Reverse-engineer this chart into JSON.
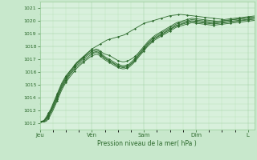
{
  "bg_color": "#c8e8cc",
  "plot_bg_color": "#d8f0dc",
  "grid_color_major": "#99cc99",
  "grid_color_minor": "#aaddaa",
  "line_color": "#2d6a2d",
  "marker_color": "#2d6a2d",
  "xlabel_text": "Pression niveau de la mer( hPa )",
  "ylim": [
    1011.5,
    1021.5
  ],
  "yticks": [
    1012,
    1013,
    1014,
    1015,
    1016,
    1017,
    1018,
    1019,
    1020,
    1021
  ],
  "xtick_labels": [
    "Jeu",
    "Ven",
    "Sam",
    "Dim",
    "L"
  ],
  "xtick_pos": [
    0,
    24,
    48,
    72,
    96
  ],
  "total_hours": 99,
  "n_points": 100,
  "series": [
    [
      1012.1,
      1012.15,
      1012.25,
      1012.5,
      1012.8,
      1013.1,
      1013.5,
      1013.9,
      1014.3,
      1014.7,
      1015.1,
      1015.4,
      1015.7,
      1015.9,
      1016.1,
      1016.3,
      1016.5,
      1016.7,
      1016.85,
      1017.0,
      1017.15,
      1017.3,
      1017.5,
      1017.65,
      1017.8,
      1017.9,
      1018.0,
      1018.1,
      1018.2,
      1018.3,
      1018.4,
      1018.5,
      1018.55,
      1018.6,
      1018.65,
      1018.7,
      1018.75,
      1018.8,
      1018.85,
      1018.9,
      1019.0,
      1019.1,
      1019.2,
      1019.3,
      1019.4,
      1019.5,
      1019.6,
      1019.7,
      1019.8,
      1019.85,
      1019.9,
      1019.95,
      1020.0,
      1020.05,
      1020.1,
      1020.15,
      1020.2,
      1020.25,
      1020.3,
      1020.35,
      1020.4,
      1020.42,
      1020.44,
      1020.46,
      1020.48,
      1020.5,
      1020.48,
      1020.46,
      1020.44,
      1020.42,
      1020.4,
      1020.38,
      1020.36,
      1020.34,
      1020.32,
      1020.3,
      1020.28,
      1020.26,
      1020.24,
      1020.22,
      1020.2,
      1020.18,
      1020.16,
      1020.14,
      1020.12,
      1020.1,
      1020.12,
      1020.14,
      1020.16,
      1020.18,
      1020.2,
      1020.22,
      1020.24,
      1020.26,
      1020.28,
      1020.3,
      1020.32,
      1020.34,
      1020.36,
      1020.38
    ],
    [
      1012.1,
      1012.15,
      1012.2,
      1012.4,
      1012.7,
      1013.0,
      1013.4,
      1013.8,
      1014.2,
      1014.6,
      1015.0,
      1015.3,
      1015.6,
      1015.85,
      1016.1,
      1016.3,
      1016.55,
      1016.75,
      1016.9,
      1017.05,
      1017.2,
      1017.35,
      1017.5,
      1017.6,
      1017.7,
      1017.75,
      1017.8,
      1017.75,
      1017.6,
      1017.5,
      1017.4,
      1017.35,
      1017.3,
      1017.2,
      1017.1,
      1017.0,
      1016.9,
      1016.85,
      1016.8,
      1016.8,
      1016.85,
      1016.9,
      1017.0,
      1017.1,
      1017.25,
      1017.4,
      1017.6,
      1017.8,
      1018.0,
      1018.2,
      1018.4,
      1018.55,
      1018.7,
      1018.85,
      1018.95,
      1019.05,
      1019.15,
      1019.25,
      1019.35,
      1019.45,
      1019.55,
      1019.65,
      1019.75,
      1019.85,
      1019.9,
      1019.95,
      1020.0,
      1020.05,
      1020.1,
      1020.15,
      1020.2,
      1020.18,
      1020.16,
      1020.14,
      1020.12,
      1020.1,
      1020.08,
      1020.06,
      1020.04,
      1020.02,
      1020.0,
      1019.98,
      1019.96,
      1019.98,
      1020.0,
      1020.02,
      1020.04,
      1020.06,
      1020.08,
      1020.1,
      1020.12,
      1020.14,
      1020.16,
      1020.18,
      1020.2,
      1020.22,
      1020.24,
      1020.26,
      1020.28,
      1020.3
    ],
    [
      1012.1,
      1012.12,
      1012.18,
      1012.38,
      1012.65,
      1012.95,
      1013.3,
      1013.7,
      1014.1,
      1014.5,
      1014.9,
      1015.2,
      1015.5,
      1015.75,
      1016.0,
      1016.2,
      1016.45,
      1016.65,
      1016.8,
      1016.95,
      1017.1,
      1017.25,
      1017.4,
      1017.5,
      1017.6,
      1017.65,
      1017.7,
      1017.65,
      1017.5,
      1017.35,
      1017.2,
      1017.1,
      1017.0,
      1016.9,
      1016.8,
      1016.7,
      1016.6,
      1016.55,
      1016.5,
      1016.5,
      1016.55,
      1016.6,
      1016.75,
      1016.9,
      1017.1,
      1017.3,
      1017.5,
      1017.7,
      1017.9,
      1018.1,
      1018.3,
      1018.45,
      1018.6,
      1018.75,
      1018.85,
      1018.95,
      1019.05,
      1019.15,
      1019.25,
      1019.35,
      1019.45,
      1019.55,
      1019.65,
      1019.75,
      1019.8,
      1019.85,
      1019.9,
      1019.95,
      1020.0,
      1020.05,
      1020.1,
      1020.08,
      1020.06,
      1020.04,
      1020.02,
      1020.0,
      1019.98,
      1019.96,
      1019.94,
      1019.92,
      1019.9,
      1019.92,
      1019.94,
      1019.96,
      1019.98,
      1020.0,
      1020.02,
      1020.04,
      1020.06,
      1020.08,
      1020.1,
      1020.12,
      1020.14,
      1020.16,
      1020.18,
      1020.2,
      1020.22,
      1020.24,
      1020.26,
      1020.28
    ],
    [
      1012.1,
      1012.1,
      1012.15,
      1012.32,
      1012.58,
      1012.88,
      1013.22,
      1013.6,
      1014.0,
      1014.4,
      1014.8,
      1015.1,
      1015.4,
      1015.65,
      1015.9,
      1016.1,
      1016.35,
      1016.55,
      1016.7,
      1016.85,
      1017.0,
      1017.15,
      1017.3,
      1017.4,
      1017.5,
      1017.55,
      1017.6,
      1017.55,
      1017.4,
      1017.25,
      1017.1,
      1017.0,
      1016.9,
      1016.8,
      1016.7,
      1016.6,
      1016.5,
      1016.45,
      1016.4,
      1016.4,
      1016.45,
      1016.5,
      1016.65,
      1016.8,
      1017.0,
      1017.2,
      1017.4,
      1017.6,
      1017.8,
      1018.0,
      1018.2,
      1018.35,
      1018.5,
      1018.65,
      1018.75,
      1018.85,
      1018.95,
      1019.05,
      1019.15,
      1019.25,
      1019.35,
      1019.45,
      1019.55,
      1019.65,
      1019.7,
      1019.75,
      1019.8,
      1019.85,
      1019.9,
      1019.95,
      1020.0,
      1019.98,
      1019.96,
      1019.94,
      1019.92,
      1019.9,
      1019.88,
      1019.86,
      1019.84,
      1019.82,
      1019.8,
      1019.82,
      1019.84,
      1019.86,
      1019.88,
      1019.9,
      1019.92,
      1019.94,
      1019.96,
      1019.98,
      1020.0,
      1020.02,
      1020.04,
      1020.06,
      1020.08,
      1020.1,
      1020.12,
      1020.14,
      1020.16,
      1020.18
    ],
    [
      1012.1,
      1012.1,
      1012.1,
      1012.25,
      1012.5,
      1012.8,
      1013.12,
      1013.5,
      1013.9,
      1014.3,
      1014.7,
      1015.0,
      1015.3,
      1015.55,
      1015.8,
      1016.0,
      1016.22,
      1016.42,
      1016.58,
      1016.72,
      1016.86,
      1017.0,
      1017.15,
      1017.28,
      1017.38,
      1017.48,
      1017.52,
      1017.48,
      1017.35,
      1017.2,
      1017.05,
      1016.95,
      1016.85,
      1016.75,
      1016.65,
      1016.55,
      1016.45,
      1016.4,
      1016.35,
      1016.35,
      1016.4,
      1016.45,
      1016.6,
      1016.75,
      1016.95,
      1017.15,
      1017.35,
      1017.55,
      1017.75,
      1017.95,
      1018.15,
      1018.3,
      1018.45,
      1018.6,
      1018.7,
      1018.8,
      1018.9,
      1019.0,
      1019.1,
      1019.2,
      1019.3,
      1019.4,
      1019.5,
      1019.6,
      1019.65,
      1019.7,
      1019.75,
      1019.8,
      1019.85,
      1019.9,
      1019.95,
      1019.93,
      1019.91,
      1019.89,
      1019.87,
      1019.85,
      1019.83,
      1019.81,
      1019.79,
      1019.77,
      1019.75,
      1019.77,
      1019.79,
      1019.81,
      1019.83,
      1019.85,
      1019.87,
      1019.89,
      1019.91,
      1019.93,
      1019.95,
      1019.97,
      1019.99,
      1020.01,
      1020.03,
      1020.05,
      1020.07,
      1020.09,
      1020.11,
      1020.13
    ],
    [
      1012.1,
      1012.1,
      1012.1,
      1012.15,
      1012.35,
      1012.65,
      1012.98,
      1013.35,
      1013.75,
      1014.15,
      1014.55,
      1014.88,
      1015.18,
      1015.42,
      1015.65,
      1015.85,
      1016.08,
      1016.28,
      1016.45,
      1016.6,
      1016.74,
      1016.88,
      1017.02,
      1017.15,
      1017.25,
      1017.32,
      1017.38,
      1017.35,
      1017.22,
      1017.08,
      1016.95,
      1016.85,
      1016.75,
      1016.65,
      1016.55,
      1016.45,
      1016.35,
      1016.3,
      1016.25,
      1016.25,
      1016.3,
      1016.35,
      1016.5,
      1016.65,
      1016.85,
      1017.05,
      1017.25,
      1017.45,
      1017.65,
      1017.85,
      1018.05,
      1018.2,
      1018.35,
      1018.5,
      1018.6,
      1018.7,
      1018.8,
      1018.9,
      1019.0,
      1019.1,
      1019.2,
      1019.3,
      1019.4,
      1019.5,
      1019.55,
      1019.6,
      1019.65,
      1019.7,
      1019.75,
      1019.8,
      1019.85,
      1019.83,
      1019.81,
      1019.79,
      1019.77,
      1019.75,
      1019.73,
      1019.71,
      1019.69,
      1019.67,
      1019.65,
      1019.67,
      1019.69,
      1019.71,
      1019.73,
      1019.75,
      1019.77,
      1019.79,
      1019.81,
      1019.83,
      1019.85,
      1019.87,
      1019.89,
      1019.91,
      1019.93,
      1019.95,
      1019.97,
      1019.99,
      1020.01,
      1020.03
    ]
  ]
}
